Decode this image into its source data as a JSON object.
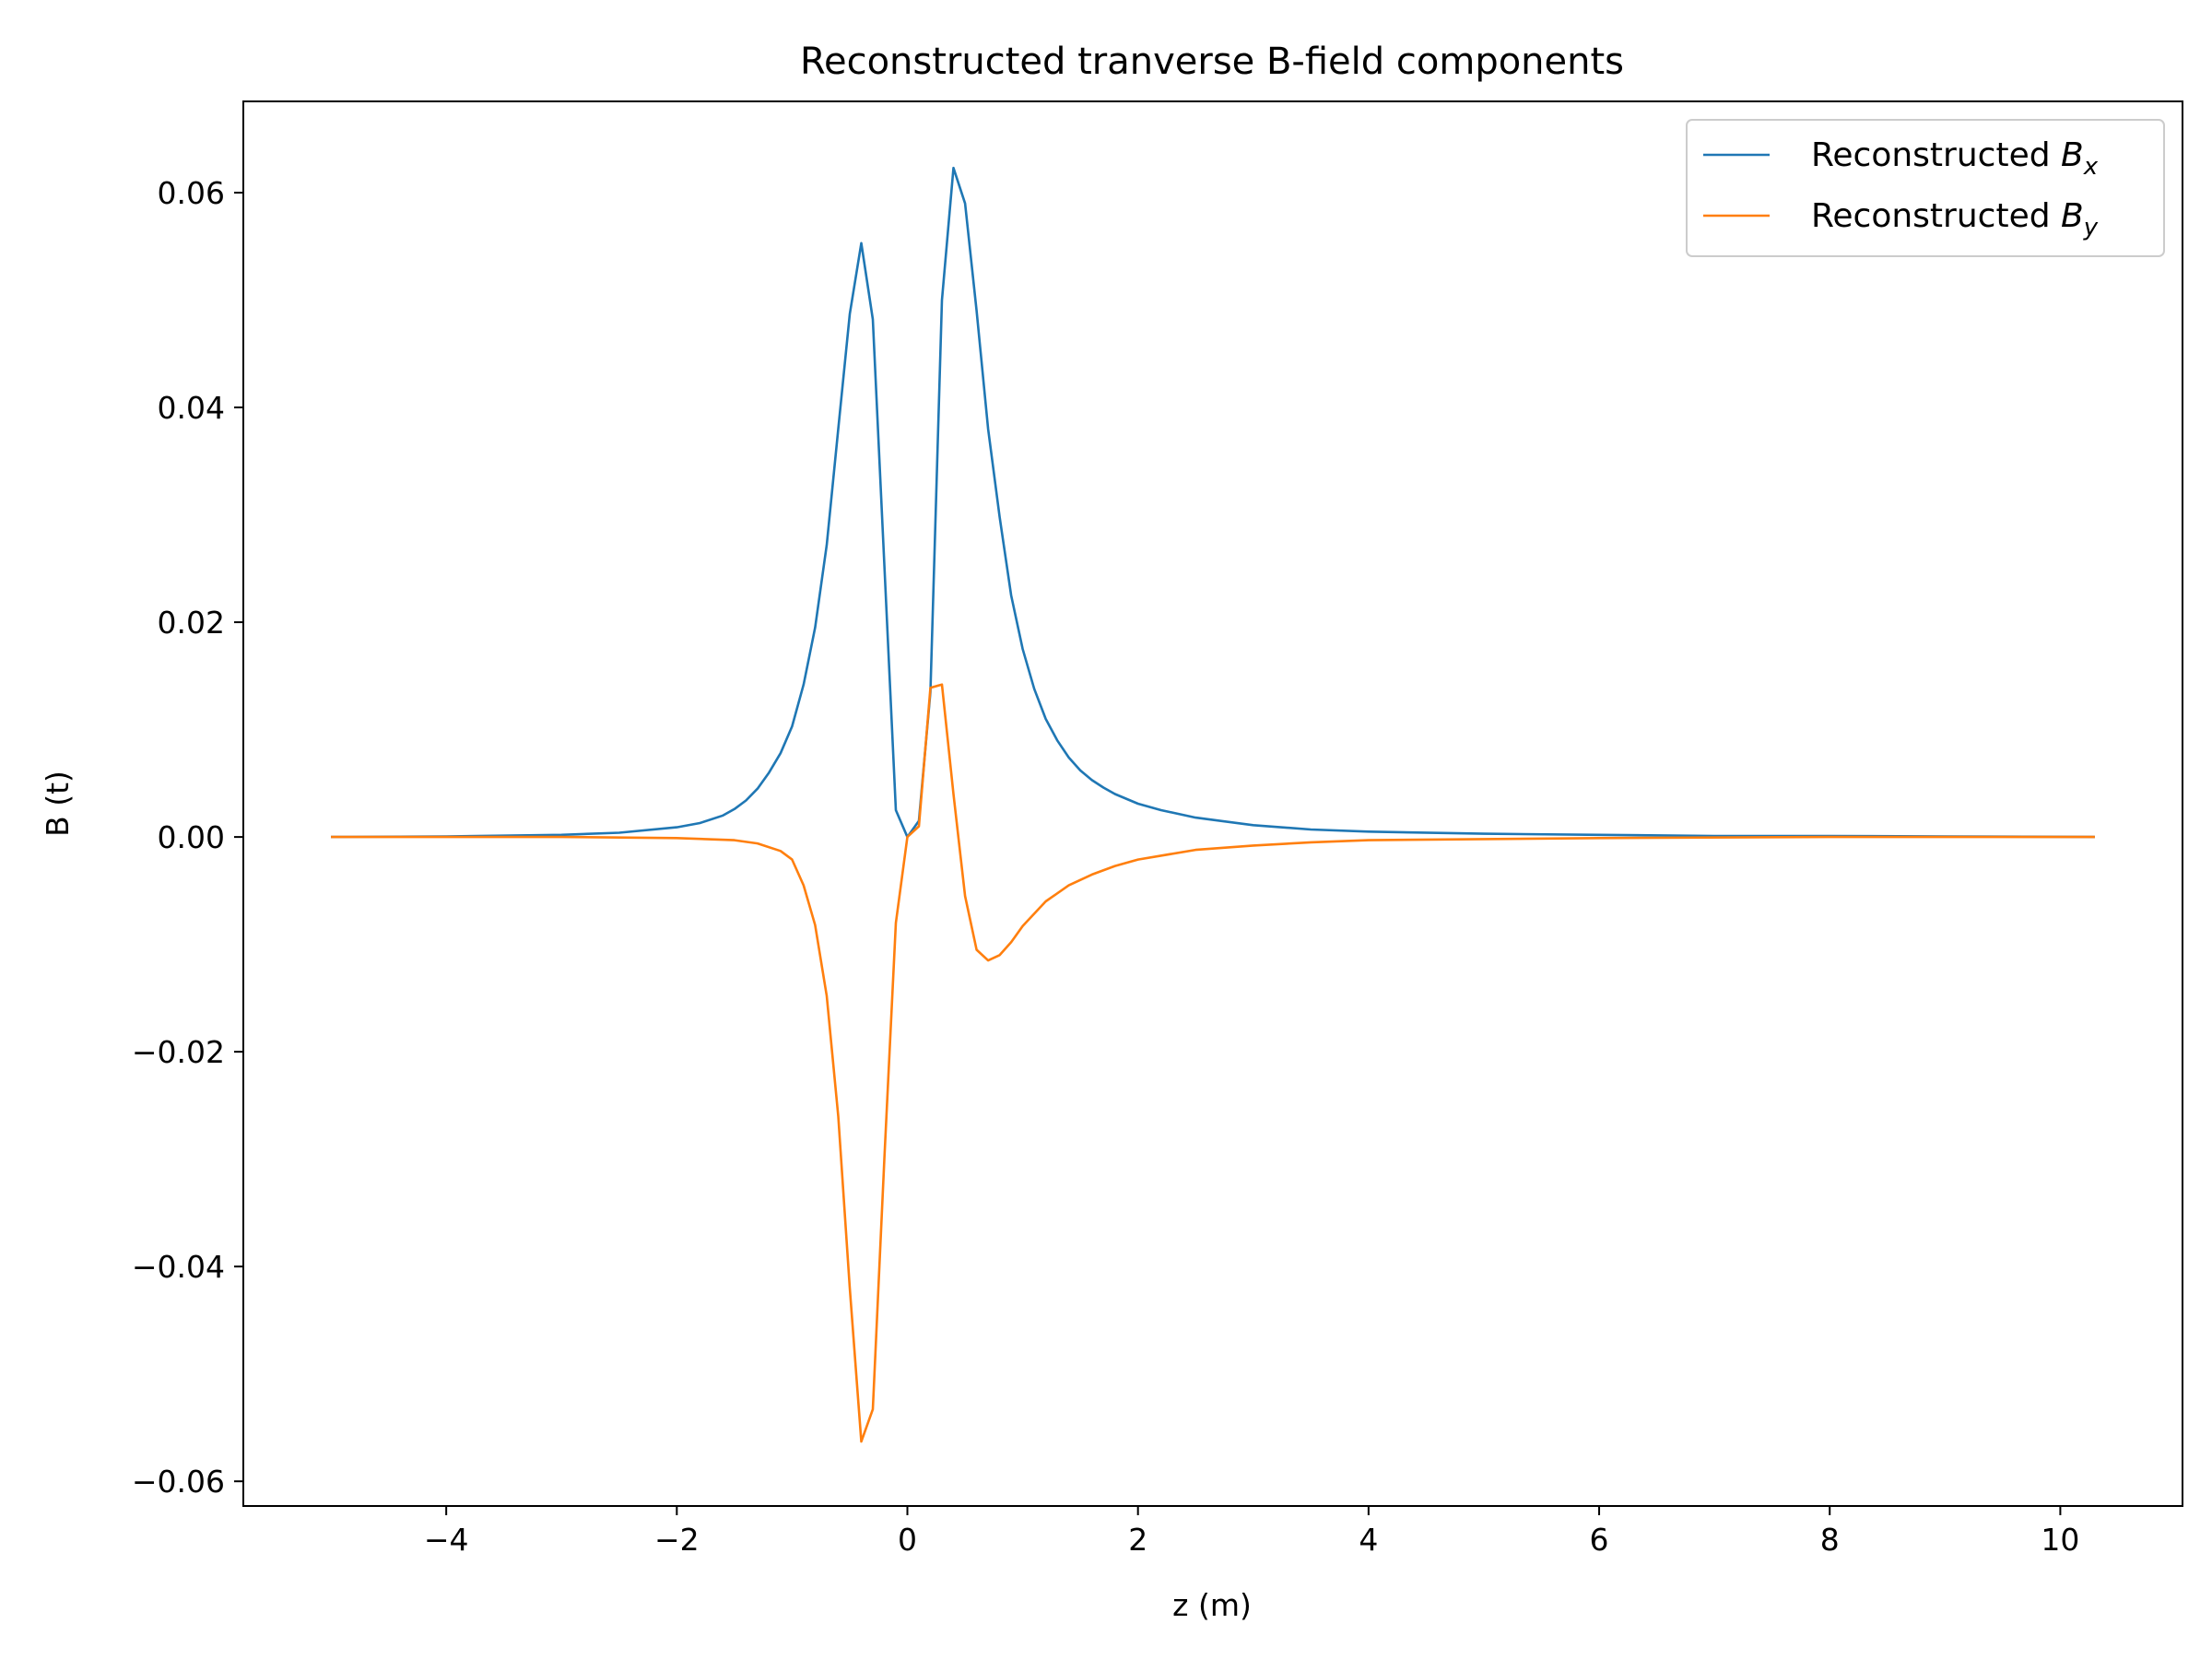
{
  "chart_data": {
    "type": "line",
    "title": "Reconstructed tranverse B-field components",
    "xlabel": "z (m)",
    "ylabel": "B (t)",
    "xlim": [
      -5.76,
      11.06
    ],
    "ylim": [
      -0.0623,
      0.0685
    ],
    "xticks": [
      -4,
      -2,
      0,
      2,
      4,
      6,
      8,
      10
    ],
    "xtick_labels": [
      "−4",
      "−2",
      "0",
      "2",
      "4",
      "6",
      "8",
      "10"
    ],
    "yticks": [
      -0.06,
      -0.04,
      -0.02,
      0.0,
      0.02,
      0.04,
      0.06
    ],
    "ytick_labels": [
      "−0.06",
      "−0.04",
      "−0.02",
      "0.00",
      "0.02",
      "0.04",
      "0.06"
    ],
    "grid": false,
    "legend_position": "top-right",
    "series": [
      {
        "name": "Reconstructed B_x",
        "legend_base": "Reconstructed ",
        "legend_symbol": "B",
        "legend_sub": "x",
        "color": "#1f77b4",
        "x": [
          -5.0,
          -4.0,
          -3.0,
          -2.5,
          -2.0,
          -1.8,
          -1.6,
          -1.5,
          -1.4,
          -1.3,
          -1.2,
          -1.1,
          -1.0,
          -0.9,
          -0.8,
          -0.7,
          -0.6,
          -0.5,
          -0.4,
          -0.3,
          -0.1,
          0.0,
          0.1,
          0.2,
          0.3,
          0.4,
          0.5,
          0.6,
          0.7,
          0.8,
          0.9,
          1.0,
          1.1,
          1.2,
          1.3,
          1.4,
          1.5,
          1.6,
          1.7,
          1.8,
          2.0,
          2.2,
          2.5,
          3.0,
          3.5,
          4.0,
          5.0,
          6.0,
          7.0,
          8.0,
          9.0,
          10.3
        ],
        "y": [
          0.0,
          5e-05,
          0.0002,
          0.0004,
          0.0009,
          0.0013,
          0.002,
          0.0026,
          0.0034,
          0.0045,
          0.006,
          0.0078,
          0.0103,
          0.0142,
          0.0195,
          0.0272,
          0.038,
          0.0487,
          0.0553,
          0.0482,
          0.0025,
          0.0,
          0.0015,
          0.0135,
          0.05,
          0.0623,
          0.059,
          0.049,
          0.038,
          0.0298,
          0.0225,
          0.0175,
          0.0138,
          0.011,
          0.009,
          0.0074,
          0.0062,
          0.0053,
          0.0046,
          0.004,
          0.0031,
          0.0025,
          0.0018,
          0.0011,
          0.0007,
          0.0005,
          0.0003,
          0.0002,
          0.0001,
          0.0001,
          5e-05,
          0.0
        ]
      },
      {
        "name": "Reconstructed B_y",
        "legend_base": "Reconstructed ",
        "legend_symbol": "B",
        "legend_sub": "y",
        "color": "#ff7f0e",
        "x": [
          -5.0,
          -3.0,
          -2.0,
          -1.5,
          -1.3,
          -1.1,
          -1.0,
          -0.9,
          -0.8,
          -0.7,
          -0.6,
          -0.5,
          -0.4,
          -0.3,
          -0.2,
          -0.1,
          0.0,
          0.1,
          0.2,
          0.3,
          0.4,
          0.5,
          0.6,
          0.7,
          0.8,
          0.9,
          1.0,
          1.2,
          1.4,
          1.6,
          1.8,
          2.0,
          2.5,
          3.0,
          3.5,
          4.0,
          5.0,
          6.0,
          8.0,
          10.3
        ],
        "y": [
          0.0,
          0.0,
          -0.0001,
          -0.0003,
          -0.0006,
          -0.0013,
          -0.0021,
          -0.0045,
          -0.0082,
          -0.0148,
          -0.026,
          -0.042,
          -0.0563,
          -0.0533,
          -0.03,
          -0.008,
          0.0,
          0.001,
          0.0139,
          0.0142,
          0.004,
          -0.0055,
          -0.0105,
          -0.0115,
          -0.011,
          -0.0098,
          -0.0083,
          -0.006,
          -0.0045,
          -0.0035,
          -0.0027,
          -0.0021,
          -0.0012,
          -0.0008,
          -0.0005,
          -0.0003,
          -0.0002,
          -0.0001,
          0.0,
          0.0
        ]
      }
    ]
  }
}
